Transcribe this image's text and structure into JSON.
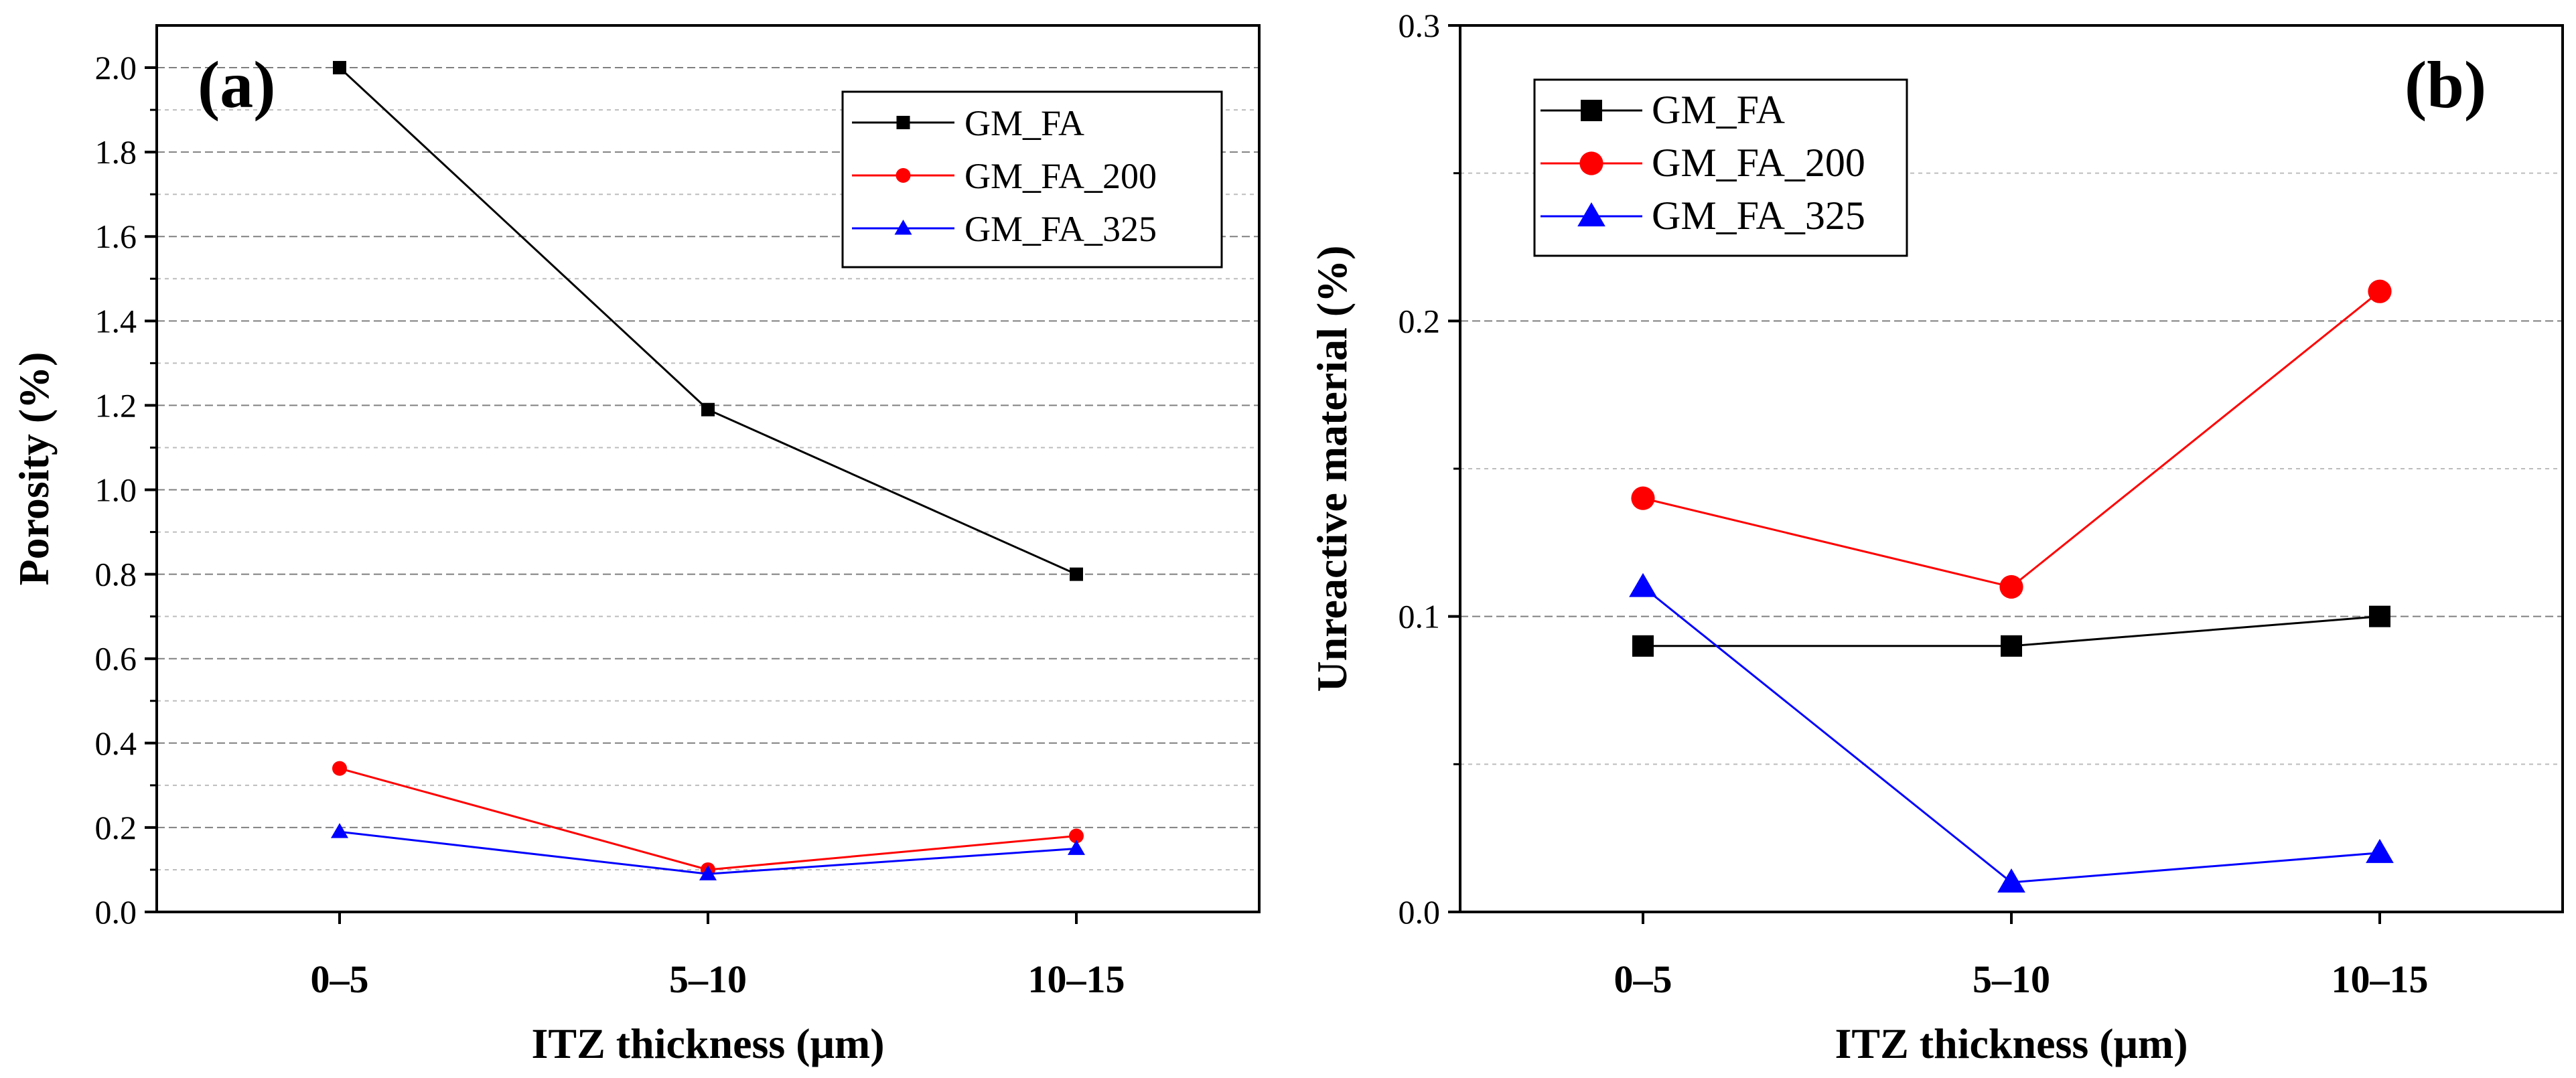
{
  "chart_data": [
    {
      "type": "line",
      "panel_label": "(a)",
      "categories": [
        "0–5",
        "5–10",
        "10–15"
      ],
      "xlabel": "ITZ thickness (μm)",
      "ylabel": "Porosity (%)",
      "ylim": [
        0,
        2.1
      ],
      "yticks": [
        "0.0",
        "0.2",
        "0.4",
        "0.6",
        "0.8",
        "1.0",
        "1.2",
        "1.4",
        "1.6",
        "1.8",
        "2.0"
      ],
      "grid": "horizontal dashed",
      "legend_position": "top-right",
      "series": [
        {
          "name": "GM_FA",
          "color": "#000000",
          "marker": "square",
          "values": [
            2.0,
            1.19,
            0.8
          ]
        },
        {
          "name": "GM_FA_200",
          "color": "#ff0000",
          "marker": "circle",
          "values": [
            0.34,
            0.1,
            0.18
          ]
        },
        {
          "name": "GM_FA_325",
          "color": "#0000ff",
          "marker": "triangle",
          "values": [
            0.19,
            0.09,
            0.15
          ]
        }
      ]
    },
    {
      "type": "line",
      "panel_label": "(b)",
      "categories": [
        "0–5",
        "5–10",
        "10–15"
      ],
      "xlabel": "ITZ thickness (μm)",
      "ylabel": "Unreactive material (%)",
      "ylim": [
        0,
        0.3
      ],
      "yticks": [
        "0.0",
        "0.1",
        "0.2",
        "0.3"
      ],
      "grid": "horizontal dashed",
      "legend_position": "top-left",
      "series": [
        {
          "name": "GM_FA",
          "color": "#000000",
          "marker": "square",
          "values": [
            0.09,
            0.09,
            0.1
          ]
        },
        {
          "name": "GM_FA_200",
          "color": "#ff0000",
          "marker": "circle",
          "values": [
            0.14,
            0.11,
            0.21
          ]
        },
        {
          "name": "GM_FA_325",
          "color": "#0000ff",
          "marker": "triangle",
          "values": [
            0.11,
            0.01,
            0.02
          ]
        }
      ]
    }
  ]
}
